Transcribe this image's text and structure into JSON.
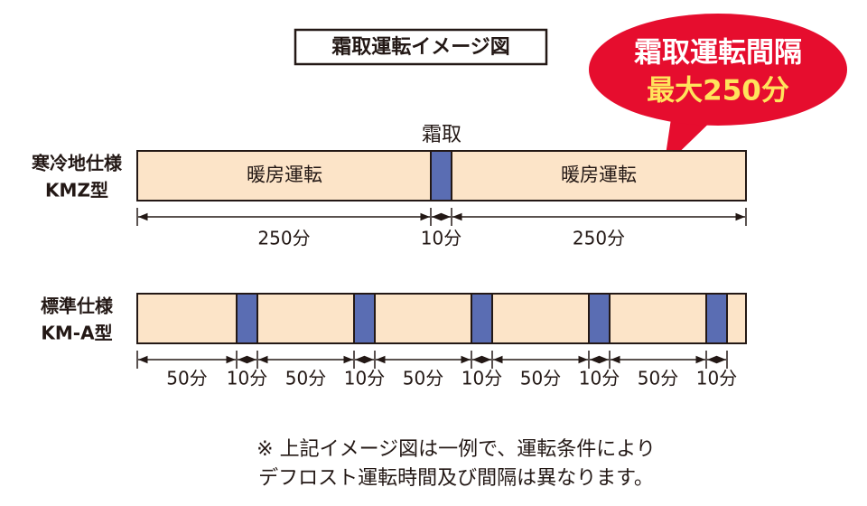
{
  "title": "霜取運転イメージ図",
  "callout": {
    "line1": "霜取運転間隔",
    "line2": "最大250分"
  },
  "defrost_label": "霜取",
  "rows": [
    {
      "label": [
        "寒冷地仕様",
        "KMZ型"
      ],
      "heating": [
        "暖房運転",
        "暖房運転"
      ],
      "intervals": [
        "250分",
        "10分",
        "250分"
      ]
    },
    {
      "label": [
        "標準仕様",
        "KM-A型"
      ],
      "intervals": [
        "50分",
        "10分",
        "50分",
        "10分",
        "50分",
        "10分",
        "50分",
        "10分",
        "50分",
        "10分"
      ]
    }
  ],
  "note": [
    "※ 上記イメージ図は一例で、運転条件により",
    "デフロスト運転時間及び間隔は異なります。"
  ]
}
